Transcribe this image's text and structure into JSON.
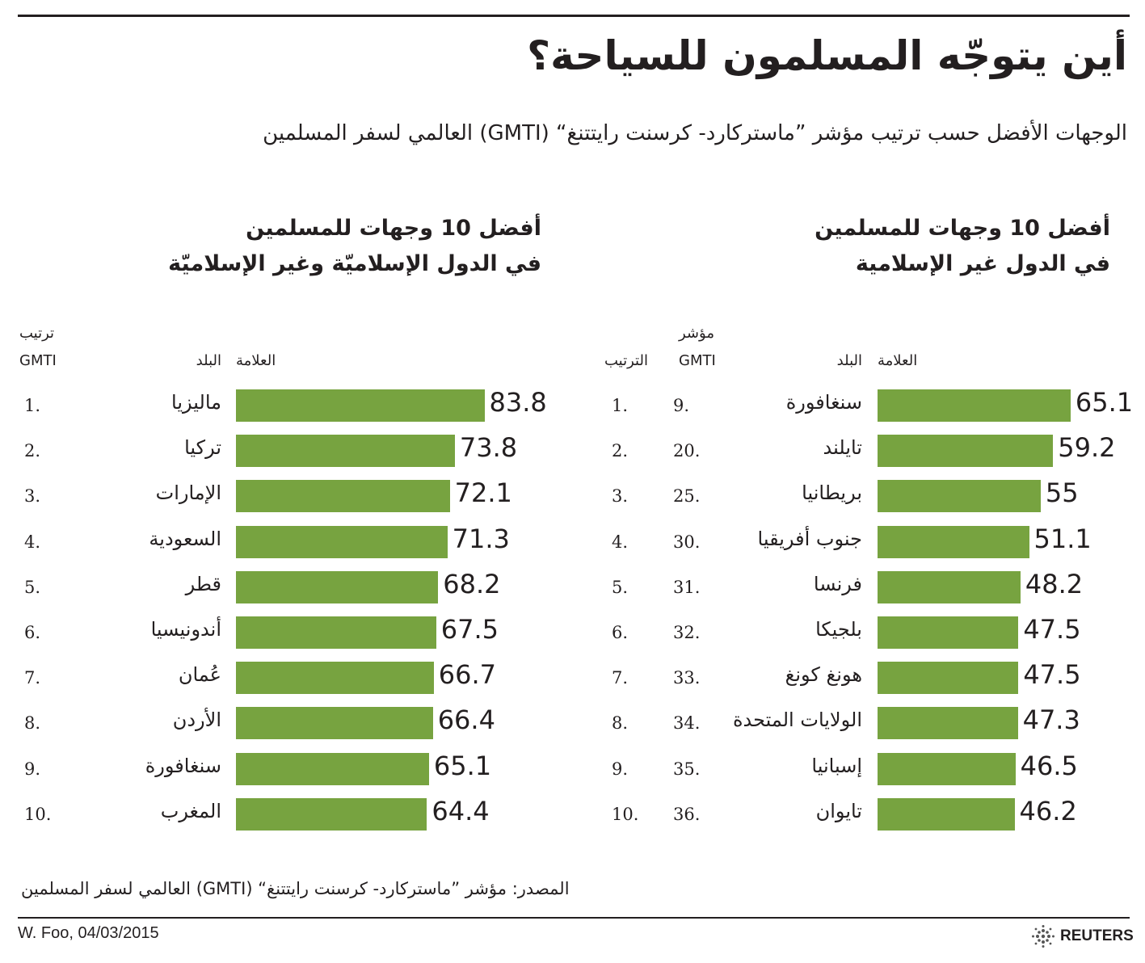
{
  "title": "أين يتوجّه المسلمون للسياحة؟",
  "subtitle": "الوجهات الأفضل حسب ترتيب مؤشر ”ماستركارد- كرسنت رايتتنغ“ (GMTI) العالمي لسفر المسلمين",
  "source": "المصدر: مؤشر ”ماستركارد- كرسنت رايتتنغ“ (GMTI) العالمي لسفر المسلمين",
  "credit": "W. Foo, 04/03/2015",
  "publisher": "REUTERS",
  "bar_color": "#77a340",
  "left_panel": {
    "title_line1": "أفضل 10 وجهات للمسلمين",
    "title_line2": "في الدول الإسلاميّة وغير الإسلاميّة",
    "hdr_rank_line1": "ترتيب",
    "hdr_rank_line2": "GMTI",
    "hdr_country": "البلد",
    "hdr_score": "العلامة"
  },
  "right_panel": {
    "title_line1": "أفضل 10 وجهات للمسلمين",
    "title_line2": "في الدول غير الإسلامية",
    "hdr_rank": "الترتيب",
    "hdr_gmti_line1": "مؤشر",
    "hdr_gmti_line2": "GMTI",
    "hdr_country": "البلد",
    "hdr_score": "العلامة"
  },
  "chart_data": [
    {
      "type": "bar",
      "orientation": "horizontal",
      "categories": [
        "ماليزيا",
        "تركيا",
        "الإمارات",
        "السعودية",
        "قطر",
        "أندونيسيا",
        "عُمان",
        "الأردن",
        "سنغافورة",
        "المغرب"
      ],
      "ranks": [
        "1.",
        "2.",
        "3.",
        "4.",
        "5.",
        "6.",
        "7.",
        "8.",
        "9.",
        "10."
      ],
      "values": [
        83.8,
        73.8,
        72.1,
        71.3,
        68.2,
        67.5,
        66.7,
        66.4,
        65.1,
        64.4
      ]
    },
    {
      "type": "bar",
      "orientation": "horizontal",
      "categories": [
        "سنغافورة",
        "تايلند",
        "بريطانيا",
        "جنوب أفريقيا",
        "فرنسا",
        "بلجيكا",
        "هونغ كونغ",
        "الولايات المتحدة",
        "إسبانيا",
        "تايوان"
      ],
      "ranks": [
        "1.",
        "2.",
        "3.",
        "4.",
        "5.",
        "6.",
        "7.",
        "8.",
        "9.",
        "10."
      ],
      "gmti_ranks": [
        "9.",
        "20.",
        "25.",
        "30.",
        "31.",
        "32.",
        "33.",
        "34.",
        "35.",
        "36."
      ],
      "values": [
        65.1,
        59.2,
        55,
        51.1,
        48.2,
        47.5,
        47.5,
        47.3,
        46.5,
        46.2
      ]
    }
  ]
}
